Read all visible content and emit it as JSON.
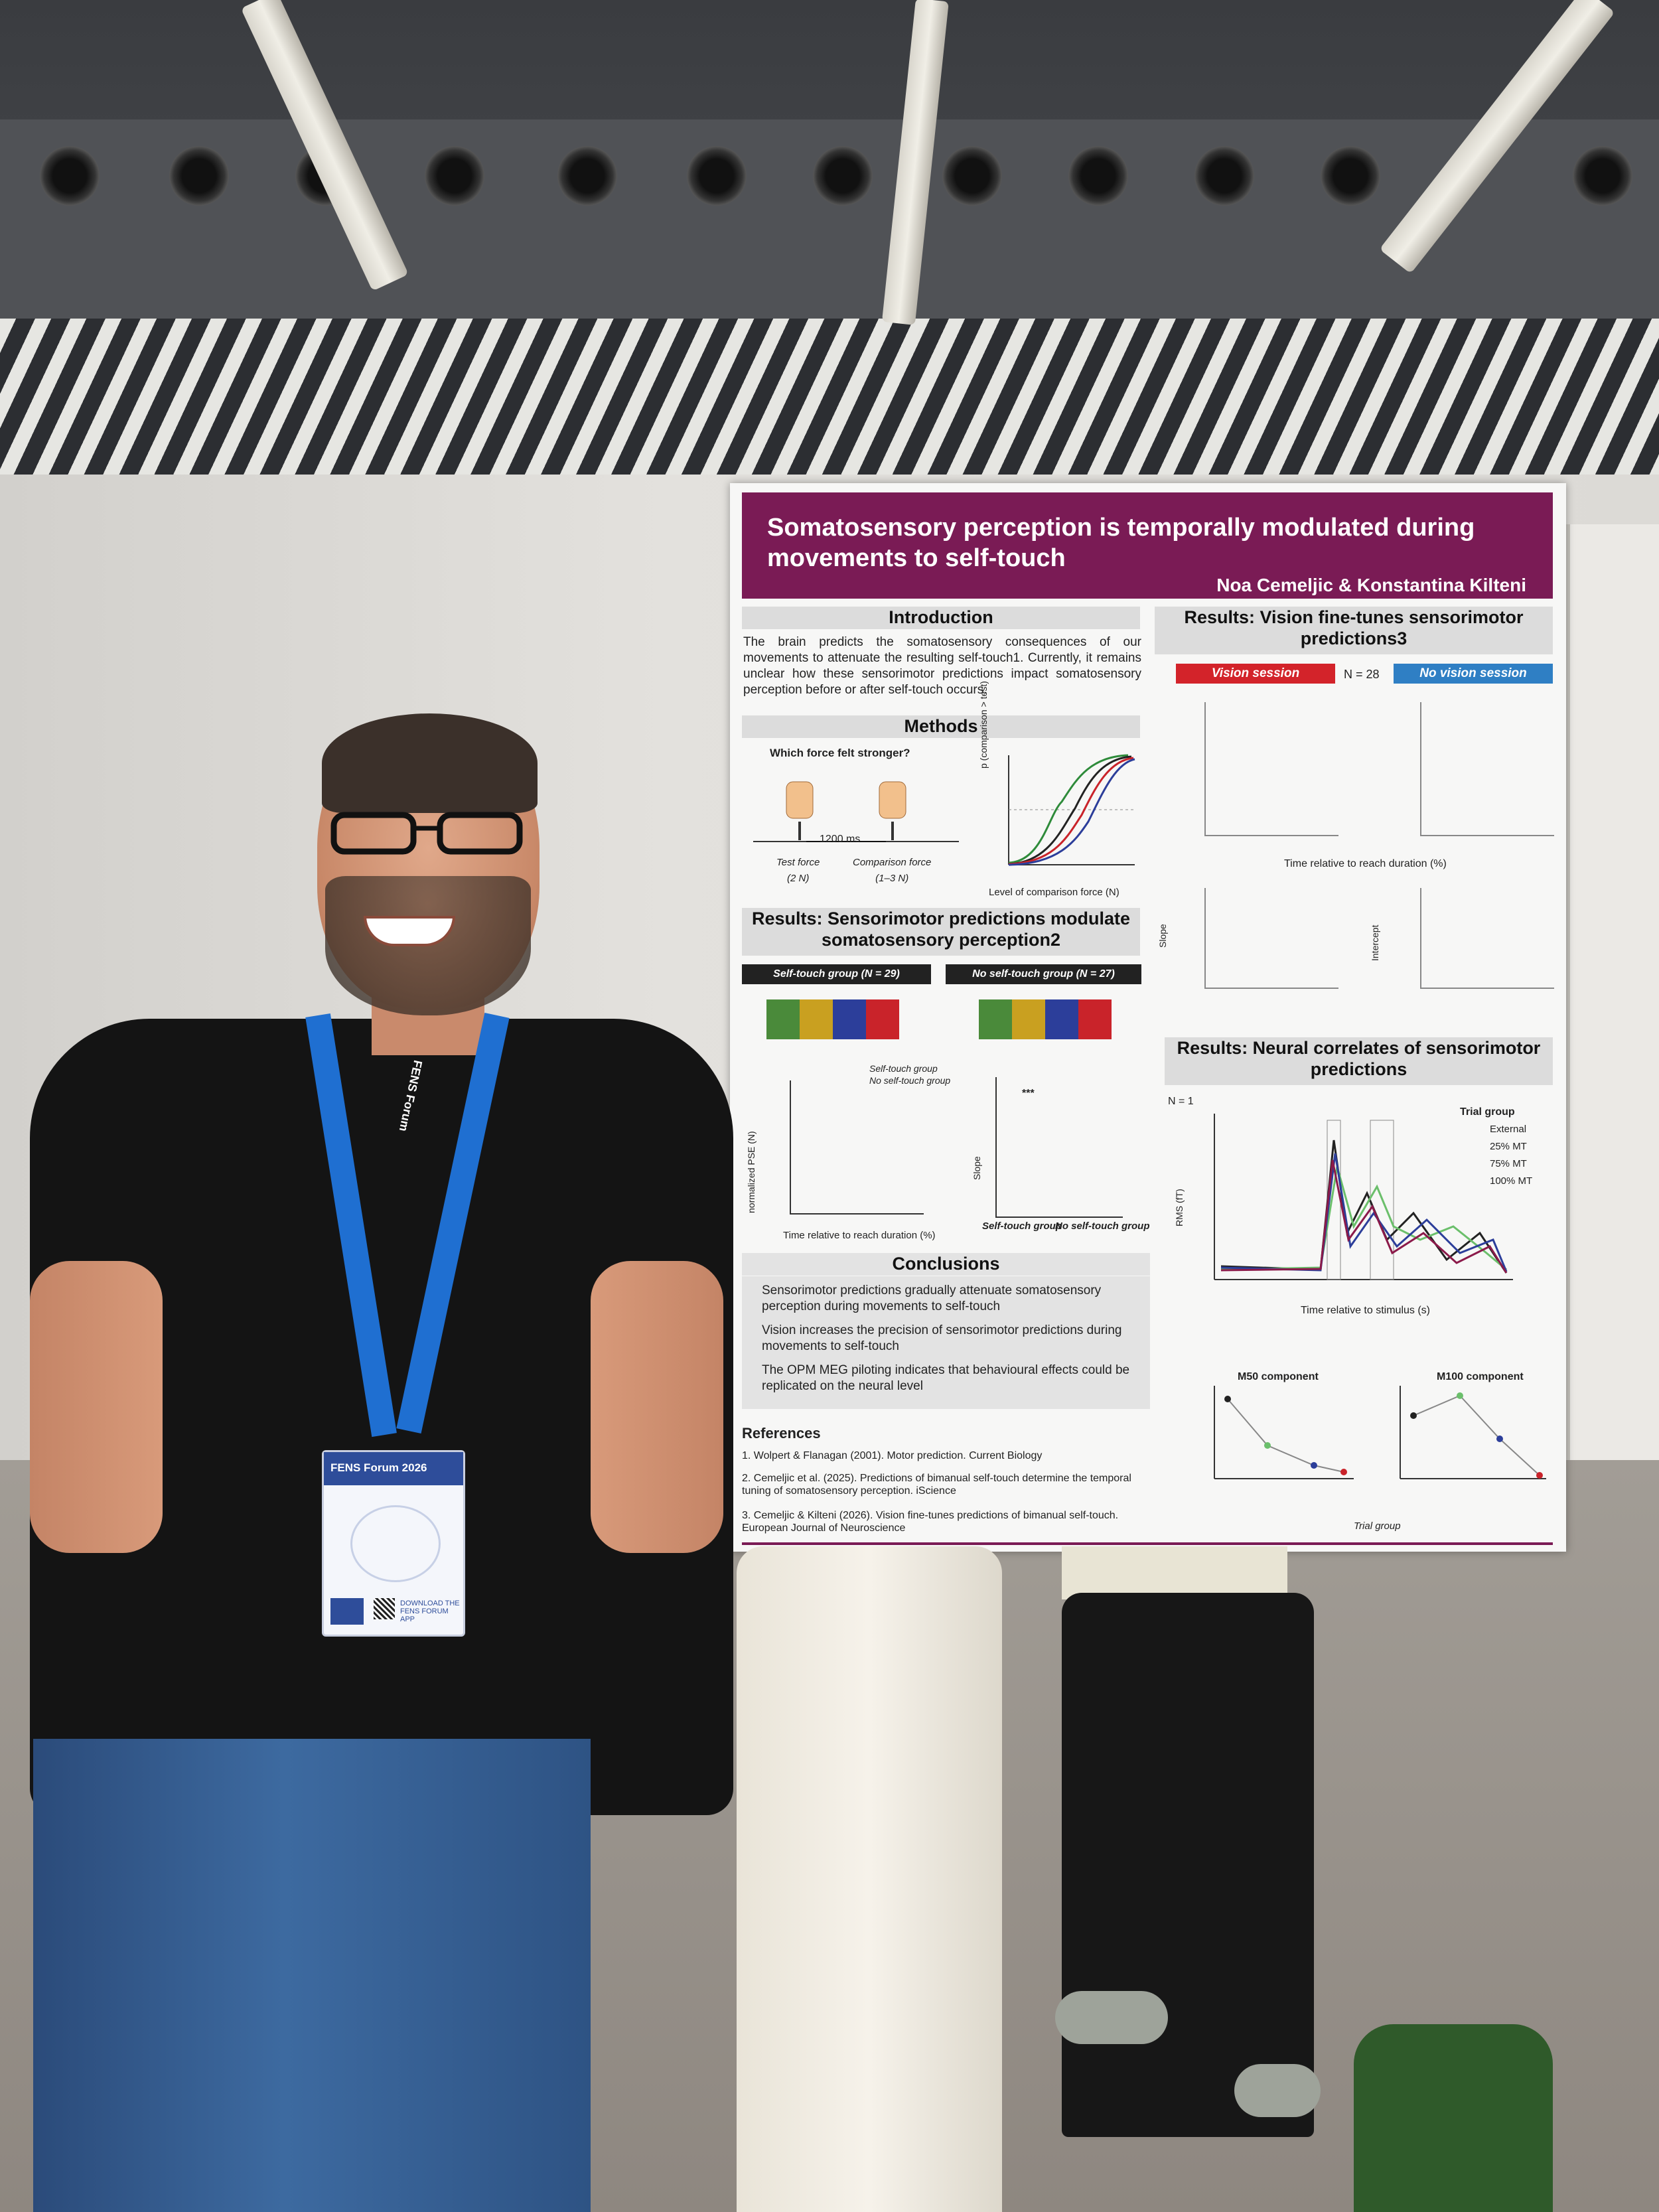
{
  "poster": {
    "title": "Somatosensory perception is temporally modulated during movements to self-touch",
    "authors_a": "Noa Cemeljic",
    "authors_amp": "&",
    "authors_b": "Konstantina Kilteni",
    "intro_head": "Introduction",
    "intro_text": "The brain predicts the somatosensory consequences of our movements to attenuate the resulting self-touch1. Currently, it remains unclear how these sensorimotor predictions impact somatosensory perception before or after self-touch occurs.",
    "methods_head": "Methods",
    "methods_question": "Which force felt stronger?",
    "methods_interval": "1200 ms",
    "methods_test": "Test force\n(2 N)",
    "methods_comparison": "Comparison force\n(1–3 N)",
    "methods_ylabel": "p (comparison > test)",
    "methods_xlabel": "Level of comparison force (N)",
    "results1_head": "Results: Sensorimotor predictions modulate somatosensory perception2",
    "selftouch_group": "Self-touch group (N = 29)",
    "noselftouch_group": "No self-touch group (N = 27)",
    "legend_self": "Self-touch group",
    "legend_noself": "No self-touch group",
    "pse_ylabel": "normalized PSE (N)",
    "pse_xlabel": "Time relative to reach duration (%)",
    "slope_label": "Slope",
    "slope_significance": "***",
    "slope_groups": [
      "Self-touch group",
      "No self-touch group"
    ],
    "conclusions_head": "Conclusions",
    "conclusions": [
      "Sensorimotor predictions gradually attenuate somatosensory perception during movements to self-touch",
      "Vision increases the precision of sensorimotor predictions during movements to self-touch",
      "The OPM MEG piloting indicates that behavioural effects could be replicated on the neural level"
    ],
    "references_head": "References",
    "references": [
      "1. Wolpert & Flanagan (2001). Motor prediction. Current Biology",
      "2. Cemeljic et al. (2025). Predictions of bimanual self-touch determine the temporal tuning of somatosensory perception. iScience",
      "3. Cemeljic & Kilteni (2026). Vision fine-tunes predictions of bimanual self-touch. European Journal of Neuroscience"
    ],
    "results2_head": "Results: Vision fine-tunes sensorimotor predictions3",
    "vision_session": "Vision session",
    "n_label": "N = 28",
    "novision_session": "No vision session",
    "vision_xlabel": "Time relative to reach duration (%)",
    "intercept_label": "Intercept",
    "results3_head": "Results: Neural correlates of sensorimotor predictions",
    "n1_label": "N = 1",
    "trial_group": "Trial group",
    "trial_groups": [
      "External",
      "25% MT",
      "75% MT",
      "100% MT"
    ],
    "rms_label": "RMS (fT)",
    "neural_xlabel": "Time relative to stimulus (s)",
    "m50": "M50 component",
    "m100": "M100 component",
    "component_xlabel": "Trial group"
  },
  "badge": {
    "event": "FENS Forum 2026",
    "download": "DOWNLOAD THE FENS FORUM APP"
  },
  "lanyard_text": "FENS Forum",
  "colors": {
    "banner": "#7a1b55",
    "vision": "#d3232a",
    "novision": "#2f7fc4",
    "lanyard": "#1f6fd1"
  }
}
